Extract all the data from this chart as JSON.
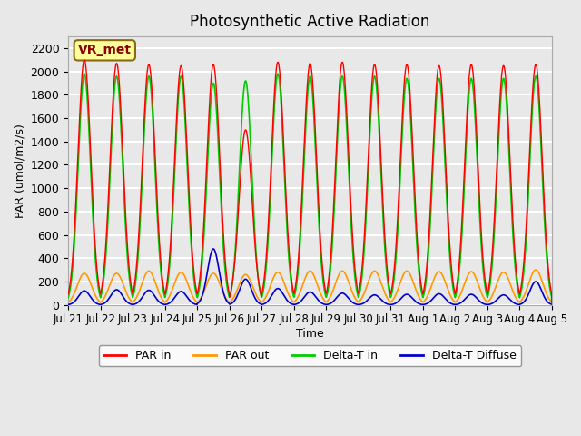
{
  "title": "Photosynthetic Active Radiation",
  "ylabel": "PAR (umol/m2/s)",
  "xlabel": "Time",
  "annotation": "VR_met",
  "ylim": [
    0,
    2300
  ],
  "legend_labels": [
    "PAR in",
    "PAR out",
    "Delta-T in",
    "Delta-T Diffuse"
  ],
  "legend_colors": [
    "#ff0000",
    "#ff9900",
    "#00cc00",
    "#0000cc"
  ],
  "background_color": "#e8e8e8",
  "plot_bg_color": "#e8e8e8",
  "grid_color": "#ffffff",
  "x_tick_labels": [
    "Jul 21",
    "Jul 22",
    "Jul 23",
    "Jul 24",
    "Jul 25",
    "Jul 26",
    "Jul 27",
    "Jul 28",
    "Jul 29",
    "Jul 30",
    "Jul 31",
    "Aug 1",
    "Aug 2",
    "Aug 3",
    "Aug 4",
    "Aug 5"
  ],
  "num_days": 15,
  "par_in_peaks": [
    2100,
    2070,
    2060,
    2050,
    2060,
    1500,
    2080,
    2070,
    2080,
    2060,
    2060,
    2050,
    2060,
    2050,
    2060
  ],
  "par_out_peaks": [
    270,
    270,
    290,
    280,
    270,
    260,
    280,
    290,
    290,
    290,
    290,
    285,
    285,
    280,
    300
  ],
  "delta_t_in_peaks": [
    1980,
    1960,
    1960,
    1960,
    1900,
    1920,
    1980,
    1960,
    1960,
    1960,
    1940,
    1940,
    1940,
    1940,
    1960
  ],
  "delta_t_diff_peaks": [
    120,
    130,
    125,
    115,
    480,
    220,
    140,
    110,
    100,
    85,
    90,
    95,
    90,
    85,
    200
  ]
}
